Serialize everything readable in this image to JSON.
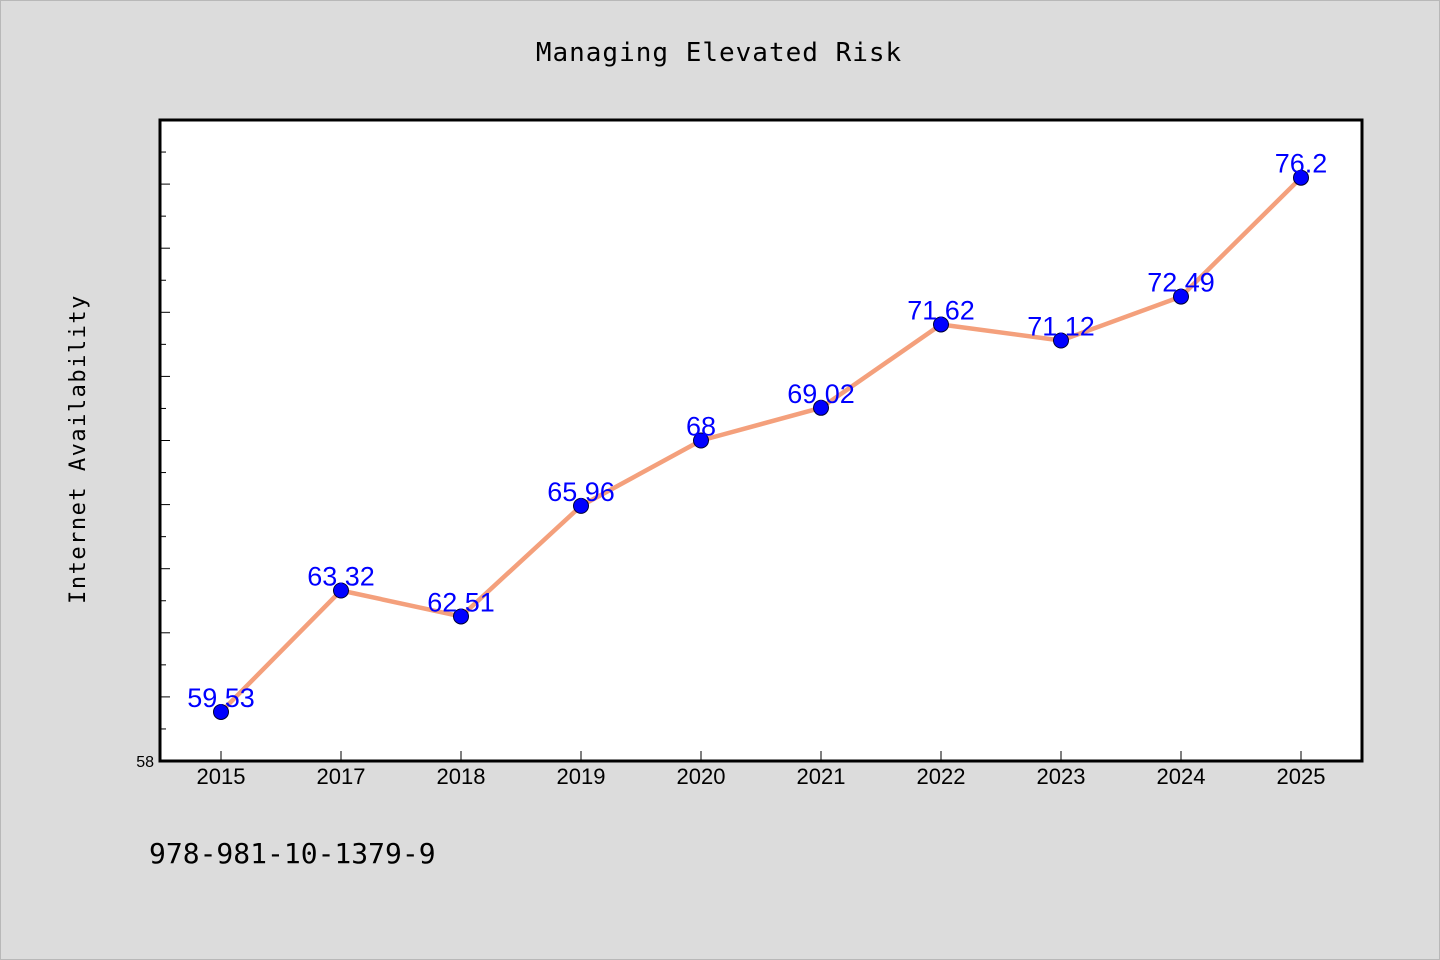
{
  "chart_data": {
    "type": "line",
    "title": "Managing Elevated Risk",
    "xlabel": "",
    "ylabel": "Internet Availability",
    "categories": [
      "2015",
      "2017",
      "2018",
      "2019",
      "2020",
      "2021",
      "2022",
      "2023",
      "2024",
      "2025"
    ],
    "series": [
      {
        "values": [
          59.53,
          63.32,
          62.51,
          65.96,
          68,
          69.02,
          71.62,
          71.12,
          72.49,
          76.2
        ],
        "labels": [
          "59.53",
          "63.32",
          "62.51",
          "65.96",
          "68",
          "69.02",
          "71.62",
          "71.12",
          "72.49",
          "76.2"
        ],
        "line_color": "#f4a07c",
        "marker_color": "#0000ff"
      }
    ],
    "ylim": [
      58,
      78
    ],
    "yticks_labeled": [
      "58"
    ],
    "grid": false,
    "legend": "none"
  },
  "footer": {
    "isbn": "978-981-10-1379-9"
  },
  "colors": {
    "background": "#dcdcdc",
    "plot_background": "#ffffff",
    "label": "#0000ff"
  }
}
